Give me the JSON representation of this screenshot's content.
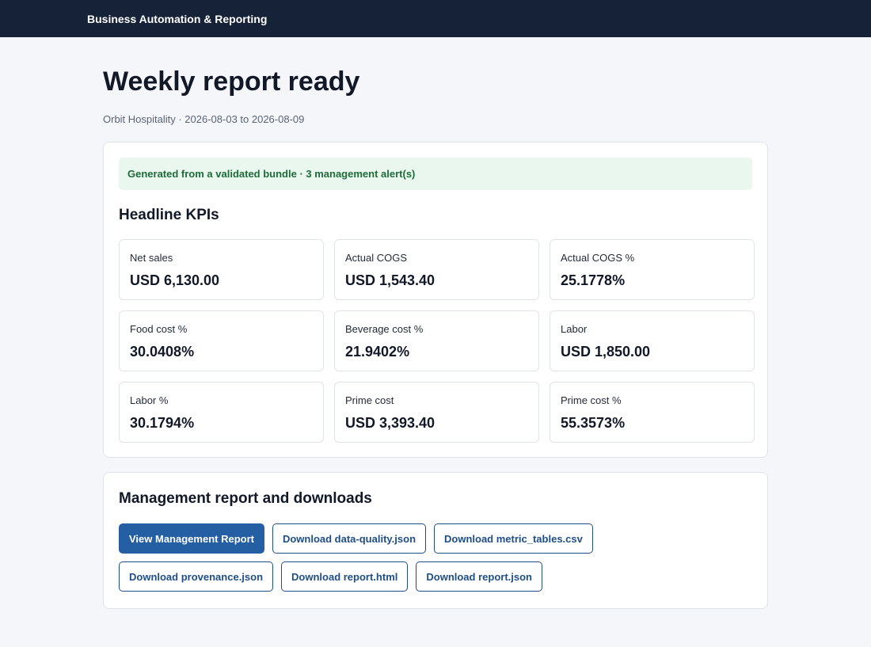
{
  "header": {
    "brand": "Business Automation & Reporting"
  },
  "page": {
    "title": "Weekly report ready",
    "subtitle": "Orbit Hospitality · 2026-08-03 to 2026-08-09"
  },
  "alert": {
    "text": "Generated from a validated bundle · 3 management alert(s)"
  },
  "kpis": {
    "heading": "Headline KPIs",
    "items": [
      {
        "label": "Net sales",
        "value": "USD 6,130.00"
      },
      {
        "label": "Actual COGS",
        "value": "USD 1,543.40"
      },
      {
        "label": "Actual COGS %",
        "value": "25.1778%"
      },
      {
        "label": "Food cost %",
        "value": "30.0408%"
      },
      {
        "label": "Beverage cost %",
        "value": "21.9402%"
      },
      {
        "label": "Labor",
        "value": "USD 1,850.00"
      },
      {
        "label": "Labor %",
        "value": "30.1794%"
      },
      {
        "label": "Prime cost",
        "value": "USD 3,393.40"
      },
      {
        "label": "Prime cost %",
        "value": "55.3573%"
      }
    ]
  },
  "downloads": {
    "heading": "Management report and downloads",
    "buttons": [
      "View Management Report",
      "Download data-quality.json",
      "Download metric_tables.csv",
      "Download provenance.json",
      "Download report.html",
      "Download report.json"
    ]
  },
  "colors": {
    "topbar": "#152238",
    "accent": "#245ea3",
    "alert_bg": "#e9f7ee",
    "alert_text": "#1f6b3a"
  }
}
